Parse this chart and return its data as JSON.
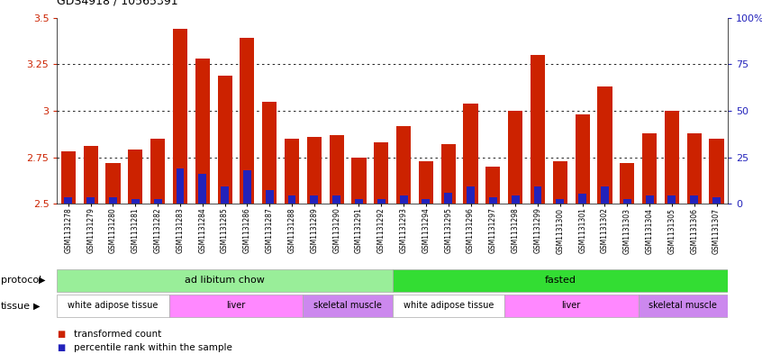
{
  "title": "GDS4918 / 10565391",
  "samples": [
    "GSM1131278",
    "GSM1131279",
    "GSM1131280",
    "GSM1131281",
    "GSM1131282",
    "GSM1131283",
    "GSM1131284",
    "GSM1131285",
    "GSM1131286",
    "GSM1131287",
    "GSM1131288",
    "GSM1131289",
    "GSM1131290",
    "GSM1131291",
    "GSM1131292",
    "GSM1131293",
    "GSM1131294",
    "GSM1131295",
    "GSM1131296",
    "GSM1131297",
    "GSM1131298",
    "GSM1131299",
    "GSM1131300",
    "GSM1131301",
    "GSM1131302",
    "GSM1131303",
    "GSM1131304",
    "GSM1131305",
    "GSM1131306",
    "GSM1131307"
  ],
  "red_values": [
    2.78,
    2.81,
    2.72,
    2.79,
    2.85,
    3.44,
    3.28,
    3.19,
    3.39,
    3.05,
    2.85,
    2.86,
    2.87,
    2.75,
    2.83,
    2.92,
    2.73,
    2.82,
    3.04,
    2.7,
    3.0,
    3.3,
    2.73,
    2.98,
    3.13,
    2.72,
    2.88,
    3.0,
    2.88,
    2.85
  ],
  "blue_values": [
    2.535,
    2.535,
    2.535,
    2.525,
    2.525,
    2.69,
    2.66,
    2.595,
    2.68,
    2.575,
    2.545,
    2.545,
    2.545,
    2.525,
    2.525,
    2.545,
    2.525,
    2.56,
    2.595,
    2.535,
    2.545,
    2.595,
    2.525,
    2.555,
    2.595,
    2.525,
    2.545,
    2.545,
    2.545,
    2.535
  ],
  "baseline": 2.5,
  "ylim_left": [
    2.5,
    3.5
  ],
  "ylim_right": [
    0,
    100
  ],
  "yticks_left": [
    2.5,
    2.75,
    3.0,
    3.25,
    3.5
  ],
  "ytick_labels_left": [
    "2.5",
    "2.75",
    "3",
    "3.25",
    "3.5"
  ],
  "yticks_right": [
    0,
    25,
    50,
    75,
    100
  ],
  "ytick_labels_right": [
    "0",
    "25",
    "50",
    "75",
    "100%"
  ],
  "grid_values": [
    2.75,
    3.0,
    3.25
  ],
  "protocol_groups": [
    {
      "label": "ad libitum chow",
      "start": 0,
      "end": 15,
      "color": "#99EE99"
    },
    {
      "label": "fasted",
      "start": 15,
      "end": 30,
      "color": "#33DD33"
    }
  ],
  "tissue_groups": [
    {
      "label": "white adipose tissue",
      "start": 0,
      "end": 5,
      "color": "#ffffff"
    },
    {
      "label": "liver",
      "start": 5,
      "end": 11,
      "color": "#FF88FF"
    },
    {
      "label": "skeletal muscle",
      "start": 11,
      "end": 15,
      "color": "#CC88EE"
    },
    {
      "label": "white adipose tissue",
      "start": 15,
      "end": 20,
      "color": "#ffffff"
    },
    {
      "label": "liver",
      "start": 20,
      "end": 26,
      "color": "#FF88FF"
    },
    {
      "label": "skeletal muscle",
      "start": 26,
      "end": 30,
      "color": "#CC88EE"
    }
  ],
  "bar_color_red": "#CC2200",
  "bar_color_blue": "#2222BB",
  "bar_width": 0.65,
  "legend_items": [
    {
      "label": "transformed count",
      "color": "#CC2200"
    },
    {
      "label": "percentile rank within the sample",
      "color": "#2222BB"
    }
  ],
  "protocol_label": "protocol",
  "tissue_label": "tissue",
  "tick_color_left": "#CC2200",
  "tick_color_right": "#2222BB",
  "title_fontsize": 9,
  "bar_label_fontsize": 5.5,
  "axis_fontsize": 8
}
